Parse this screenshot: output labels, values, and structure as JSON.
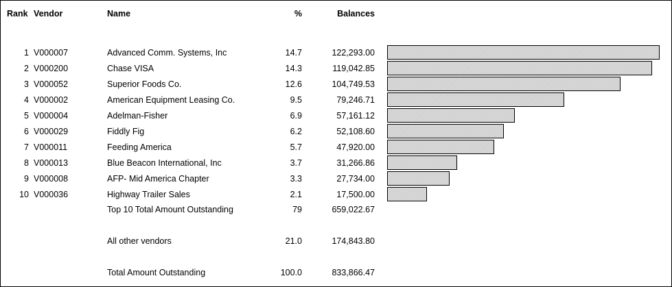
{
  "headers": {
    "rank": "Rank",
    "vendor": "Vendor",
    "name": "Name",
    "pct": "%",
    "balances": "Balances"
  },
  "rows": [
    {
      "rank": "1",
      "vendor": "V000007",
      "name": "Advanced Comm. Systems, Inc",
      "pct": "14.7",
      "balance": "122,293.00",
      "value": 122293.0
    },
    {
      "rank": "2",
      "vendor": "V000200",
      "name": "Chase VISA",
      "pct": "14.3",
      "balance": "119,042.85",
      "value": 119042.85
    },
    {
      "rank": "3",
      "vendor": "V000052",
      "name": "Superior Foods Co.",
      "pct": "12.6",
      "balance": "104,749.53",
      "value": 104749.53
    },
    {
      "rank": "4",
      "vendor": "V000002",
      "name": "American Equipment Leasing Co.",
      "pct": "9.5",
      "balance": "79,246.71",
      "value": 79246.71
    },
    {
      "rank": "5",
      "vendor": "V000004",
      "name": "Adelman-Fisher",
      "pct": "6.9",
      "balance": "57,161.12",
      "value": 57161.12
    },
    {
      "rank": "6",
      "vendor": "V000029",
      "name": "Fiddly Fig",
      "pct": "6.2",
      "balance": "52,108.60",
      "value": 52108.6
    },
    {
      "rank": "7",
      "vendor": "V000011",
      "name": "Feeding America",
      "pct": "5.7",
      "balance": "47,920.00",
      "value": 47920.0
    },
    {
      "rank": "8",
      "vendor": "V000013",
      "name": "Blue Beacon International, Inc",
      "pct": "3.7",
      "balance": "31,266.86",
      "value": 31266.86
    },
    {
      "rank": "9",
      "vendor": "V000008",
      "name": "AFP- Mid America Chapter",
      "pct": "3.3",
      "balance": "27,734.00",
      "value": 27734.0
    },
    {
      "rank": "10",
      "vendor": "V000036",
      "name": "Highway Trailer Sales",
      "pct": "2.1",
      "balance": "17,500.00",
      "value": 17500.0
    }
  ],
  "top10_total": {
    "label": "Top 10 Total Amount Outstanding",
    "pct": "79",
    "balance": "659,022.67"
  },
  "other_vendors": {
    "label": "All other vendors",
    "pct": "21.0",
    "balance": "174,843.80"
  },
  "grand_total": {
    "label": "Total Amount Outstanding",
    "pct": "100.0",
    "balance": "833,866.47"
  },
  "colors": {
    "bar_fill": "#d9d9d9",
    "bar_stroke": "#000000"
  }
}
